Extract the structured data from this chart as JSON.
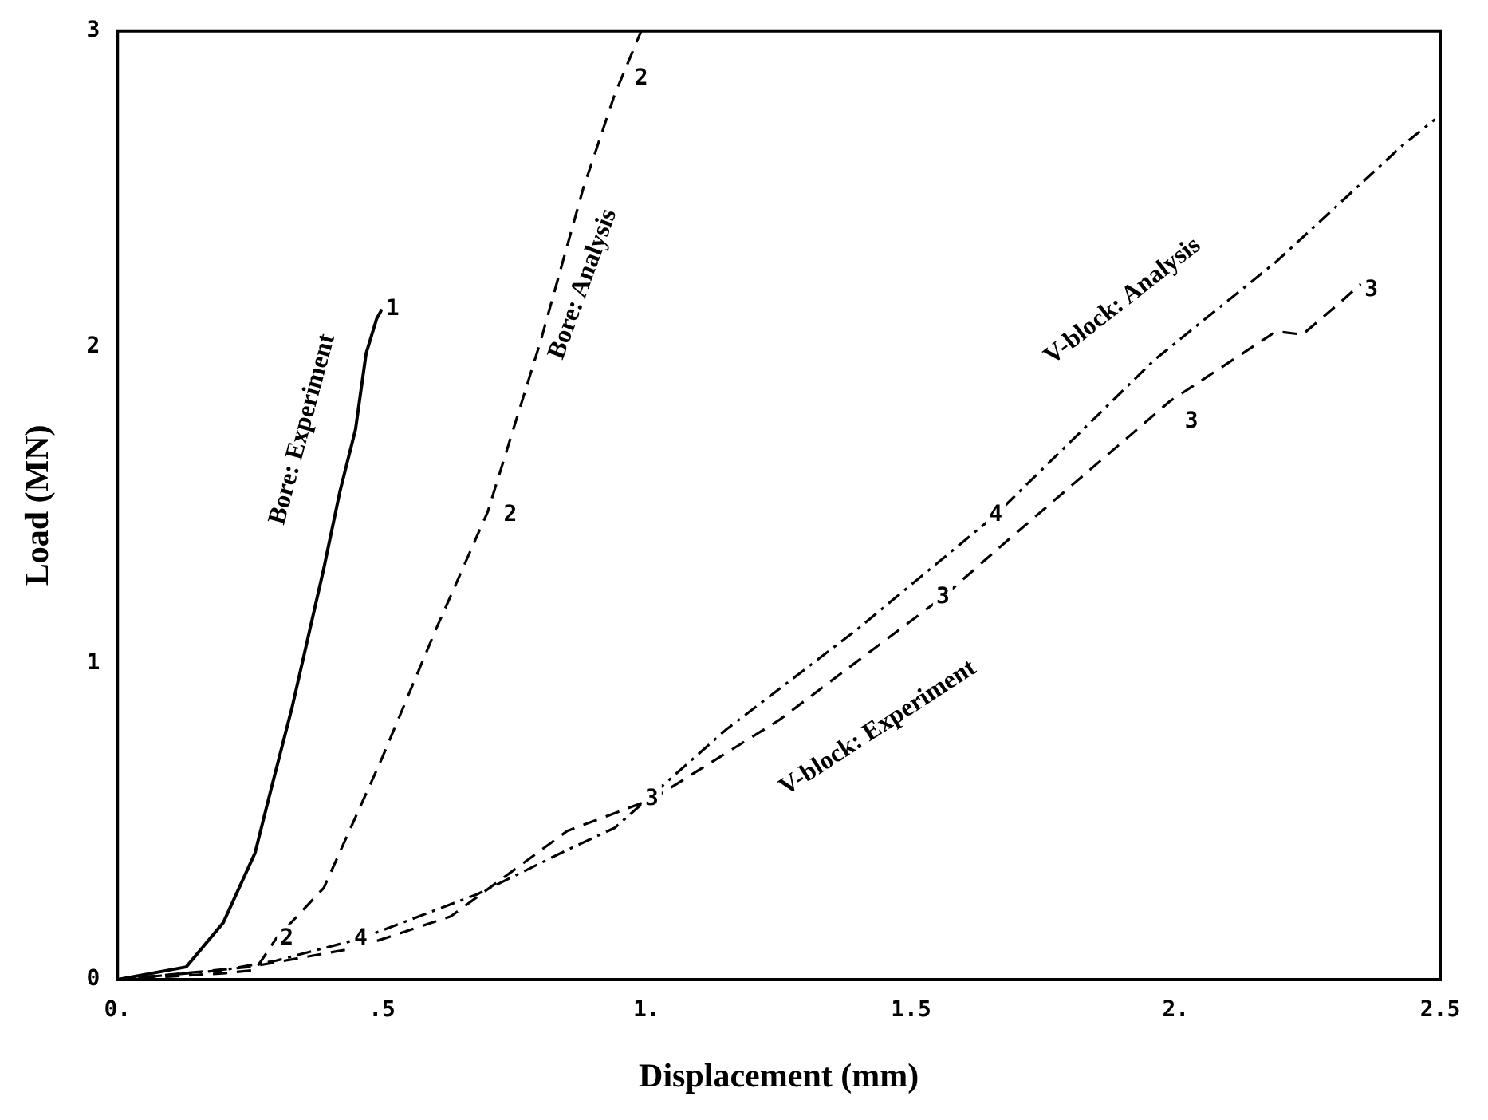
{
  "chart_data": {
    "type": "line",
    "xlabel": "Displacement (mm)",
    "ylabel": "Load (MN)",
    "xlim": [
      0,
      2.5
    ],
    "ylim": [
      0,
      3
    ],
    "xticks": [
      {
        "value": 0,
        "label": "0."
      },
      {
        "value": 0.5,
        "label": ".5"
      },
      {
        "value": 1,
        "label": "1."
      },
      1.5,
      {
        "value": 2,
        "label": "2."
      },
      2.5
    ],
    "yticks": [
      0,
      1,
      2,
      3
    ],
    "grid": false,
    "legend": false,
    "marker": "none",
    "series": [
      {
        "color": "#000000",
        "line_style": "solid",
        "x": [
          0,
          0.13,
          0.2,
          0.26,
          0.29,
          0.33,
          0.39,
          0.42,
          0.45,
          0.47,
          0.49,
          0.5
        ],
        "values": [
          0,
          0.04,
          0.18,
          0.4,
          0.6,
          0.86,
          1.3,
          1.54,
          1.74,
          1.98,
          2.09,
          2.12
        ]
      },
      {
        "color": "#000000",
        "line_style": "dashed",
        "x": [
          0,
          0.1,
          0.2,
          0.26,
          0.3,
          0.39,
          0.5,
          0.6,
          0.7,
          0.8,
          0.88,
          0.94,
          0.99
        ],
        "values": [
          0,
          0.01,
          0.02,
          0.03,
          0.13,
          0.29,
          0.7,
          1.1,
          1.48,
          2.02,
          2.5,
          2.8,
          3.0
        ]
      },
      {
        "color": "#000000",
        "line_style": "dashed",
        "x": [
          0,
          0.25,
          0.45,
          0.63,
          0.85,
          1.01,
          1.25,
          1.56,
          1.69,
          1.99,
          2.19,
          2.24,
          2.31,
          2.35
        ],
        "values": [
          0,
          0.04,
          0.1,
          0.2,
          0.47,
          0.57,
          0.82,
          1.21,
          1.4,
          1.83,
          2.05,
          2.04,
          2.14,
          2.2
        ]
      },
      {
        "color": "#000000",
        "line_style": "dotted",
        "x": [
          0,
          0.2,
          0.3,
          0.46,
          0.68,
          0.85,
          0.94,
          1.15,
          1.4,
          1.66,
          1.96,
          2.19,
          2.43,
          2.49
        ],
        "values": [
          0,
          0.03,
          0.06,
          0.13,
          0.27,
          0.41,
          0.48,
          0.79,
          1.11,
          1.47,
          1.96,
          2.27,
          2.64,
          2.72
        ]
      }
    ],
    "annotations": [
      "Bore: Experiment",
      "Bore: Analysis",
      "V-block: Analysis",
      "V-block: Experiment",
      "1",
      "2",
      "2",
      "2",
      "4",
      "4",
      "3",
      "3",
      "3",
      "3"
    ]
  }
}
